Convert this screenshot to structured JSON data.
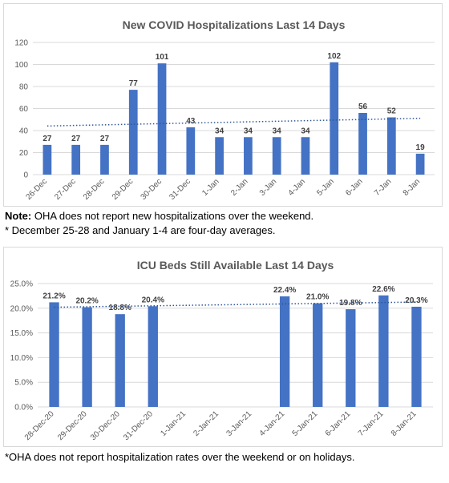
{
  "chart_data": [
    {
      "type": "bar",
      "title": "New COVID Hospitalizations Last 14 Days",
      "categories": [
        "26-Dec",
        "27-Dec",
        "28-Dec",
        "29-Dec",
        "30-Dec",
        "31-Dec",
        "1-Jan",
        "2-Jan",
        "3-Jan",
        "4-Jan",
        "5-Jan",
        "6-Jan",
        "7-Jan",
        "8-Jan"
      ],
      "values": [
        27,
        27,
        27,
        77,
        101,
        43,
        34,
        34,
        34,
        34,
        102,
        56,
        52,
        19
      ],
      "data_labels": [
        "27",
        "27",
        "27",
        "77",
        "101",
        "43",
        "34",
        "34",
        "34",
        "34",
        "102",
        "56",
        "52",
        "19"
      ],
      "ylim": [
        0,
        120
      ],
      "yticks": [
        0,
        20,
        40,
        60,
        80,
        100,
        120
      ],
      "ytick_labels": [
        "0",
        "20",
        "40",
        "60",
        "80",
        "100",
        "120"
      ],
      "trendline": "linear",
      "bar_color": "#4472C4",
      "trend_color": "#2E5597",
      "grid": true
    },
    {
      "type": "bar",
      "title": "ICU Beds Still Available Last 14 Days",
      "categories": [
        "28-Dec-20",
        "29-Dec-20",
        "30-Dec-20",
        "31-Dec-20",
        "1-Jan-21",
        "2-Jan-21",
        "3-Jan-21",
        "4-Jan-21",
        "5-Jan-21",
        "6-Jan-21",
        "7-Jan-21",
        "8-Jan-21"
      ],
      "values": [
        21.2,
        20.2,
        18.8,
        20.4,
        null,
        null,
        null,
        22.4,
        21.0,
        19.8,
        22.6,
        20.3
      ],
      "data_labels": [
        "21.2%",
        "20.2%",
        "18.8%",
        "20.4%",
        "",
        "",
        "",
        "22.4%",
        "21.0%",
        "19.8%",
        "22.6%",
        "20.3%"
      ],
      "ylim": [
        0,
        25
      ],
      "yticks": [
        0,
        5,
        10,
        15,
        20,
        25
      ],
      "ytick_labels": [
        "0.0%",
        "5.0%",
        "10.0%",
        "15.0%",
        "20.0%",
        "25.0%"
      ],
      "trendline": "linear",
      "bar_color": "#4472C4",
      "trend_color": "#2E5597",
      "grid": true
    }
  ],
  "notes": {
    "note1_bold": "Note:",
    "note1_text": " OHA does not report new hospitalizations over the weekend.",
    "note2": "* December 25-28 and January 1-4 are four-day averages.",
    "note3": "*OHA does not report hospitalization rates over the weekend or on holidays."
  }
}
